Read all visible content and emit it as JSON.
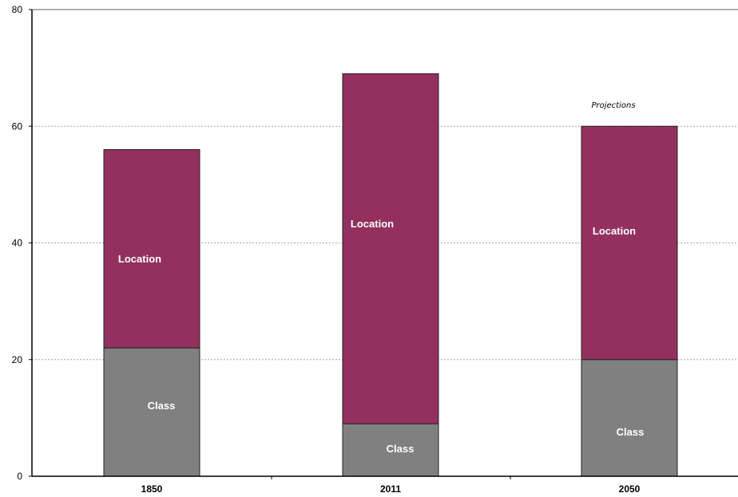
{
  "chart_data": {
    "type": "bar",
    "stacked": true,
    "categories": [
      "1850",
      "2011",
      "2050"
    ],
    "series": [
      {
        "name": "Class",
        "values": [
          22,
          9,
          20
        ],
        "color": "#808080"
      },
      {
        "name": "Location",
        "values": [
          34,
          60,
          40
        ],
        "color": "#93305e"
      }
    ],
    "ylim": [
      0,
      80
    ],
    "yticks": [
      0,
      20,
      40,
      60,
      80
    ],
    "ytick_labels": [
      "0",
      "20",
      "40",
      "60",
      "80"
    ],
    "grid": true,
    "annotations": [
      {
        "text": "Projections",
        "category": "2050"
      }
    ],
    "title": "",
    "xlabel": "",
    "ylabel": ""
  }
}
